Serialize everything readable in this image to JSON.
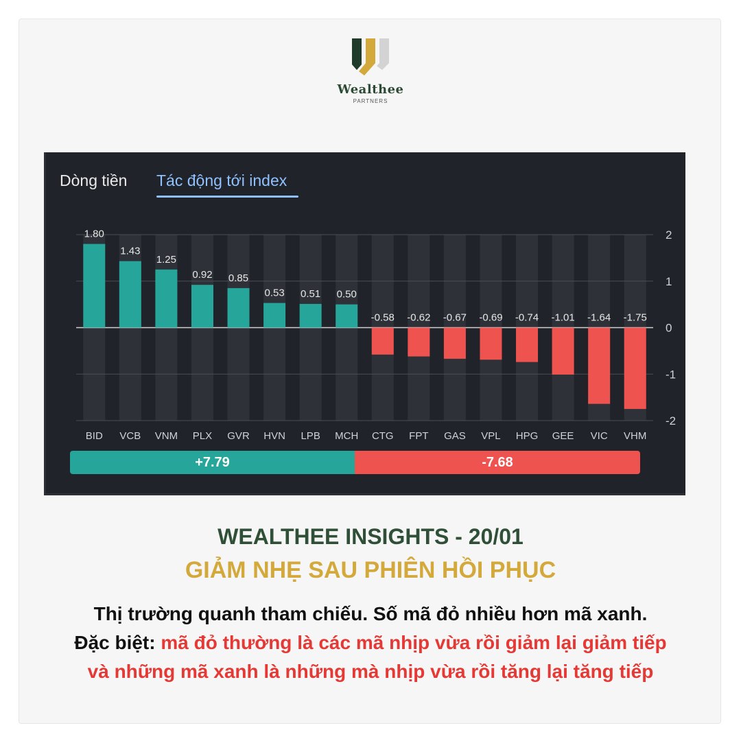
{
  "brand": {
    "name": "Wealthee",
    "sub": "PARTNERS"
  },
  "tabs": [
    {
      "label": "Dòng tiền",
      "active": false
    },
    {
      "label": "Tác động tới index",
      "active": true
    }
  ],
  "colors": {
    "positive": "#26a69a",
    "negative": "#ef5350",
    "panel_bg": "#202329",
    "active_tab": "#8fc1ff"
  },
  "chart_data": {
    "type": "bar",
    "categories": [
      "BID",
      "VCB",
      "VNM",
      "PLX",
      "GVR",
      "HVN",
      "LPB",
      "MCH",
      "CTG",
      "FPT",
      "GAS",
      "VPL",
      "HPG",
      "GEE",
      "VIC",
      "VHM"
    ],
    "values": [
      1.8,
      1.43,
      1.25,
      0.92,
      0.85,
      0.53,
      0.51,
      0.5,
      -0.58,
      -0.62,
      -0.67,
      -0.69,
      -0.74,
      -1.01,
      -1.64,
      -1.75
    ],
    "value_labels": [
      "1.80",
      "1.43",
      "1.25",
      "0.92",
      "0.85",
      "0.53",
      "0.51",
      "0.50",
      "-0.58",
      "-0.62",
      "-0.67",
      "-0.69",
      "-0.74",
      "-1.01",
      "-1.64",
      "-1.75"
    ],
    "yticks": [
      "2",
      "1",
      "0",
      "-1",
      "-2"
    ],
    "ylim": [
      -2,
      2
    ],
    "grid": true
  },
  "totals": {
    "positive": "+7.79",
    "negative": "-7.68"
  },
  "headline": {
    "line1": "WEALTHEE INSIGHTS - 20/01",
    "line2": "GIẢM NHẸ SAU PHIÊN HỒI PHỤC"
  },
  "body": {
    "line1": "Thị trường quanh tham chiếu. Số mã đỏ nhiều hơn mã xanh.",
    "line2_prefix": "Đặc biệt: ",
    "line2_red": "mã đỏ thường là các mã nhịp vừa rồi giảm lại giảm tiếp",
    "line3_red": "và những mã xanh là những mà nhịp vừa rồi tăng lại tăng tiếp"
  }
}
